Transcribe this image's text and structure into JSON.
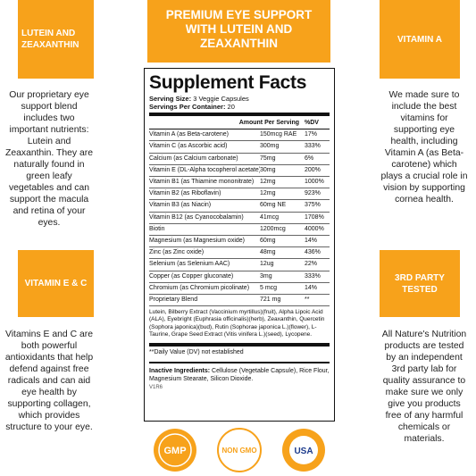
{
  "banner": "PREMIUM EYE SUPPORT WITH LUTEIN AND ZEAXANTHIN",
  "side_boxes": [
    {
      "heading": "LUTEIN AND ZEAXANTHIN",
      "text": "Our proprietary eye support blend includes two important nutrients: Lutein and Zeaxanthin. They are naturally found in green leafy vegetables and can support the macula and retina of your eyes."
    },
    {
      "heading": "VITAMIN A",
      "text": "We made sure to include the best vitamins for supporting eye health, including Vitamin A (as Beta-carotene) which plays a crucial role in vision by supporting cornea health."
    },
    {
      "heading": "VITAMIN E & C",
      "text": "Vitamins E and C are both powerful antioxidants that help defend against free radicals and can aid eye health by supporting collagen, which provides structure to your eye."
    },
    {
      "heading": "3RD PARTY TESTED",
      "text": "All Nature's Nutrition products are tested by an independent 3rd party lab for quality assurance to make sure we only give you products free of any harmful chemicals or materials."
    }
  ],
  "facts": {
    "title": "Supplement Facts",
    "serving_size_label": "Serving Size:",
    "serving_size": "3 Veggie Capsules",
    "servings_label": "Servings Per Container:",
    "servings": "20",
    "header": {
      "amount": "Amount Per Serving",
      "dv": "%DV"
    },
    "rows": [
      [
        "Vitamin A (as Beta-carotene)",
        "150mcg RAE",
        "17%"
      ],
      [
        "Vitamin C (as Ascorbic acid)",
        "300mg",
        "333%"
      ],
      [
        "Calcium (as Calcium carbonate)",
        "75mg",
        "6%"
      ],
      [
        "Vitamin E (DL-Alpha tocopherol acetate)",
        "30mg",
        "200%"
      ],
      [
        "Vitamin B1 (as Thiamine mononitrate)",
        "12mg",
        "1000%"
      ],
      [
        "Vitamin B2 (as Riboflavin)",
        "12mg",
        "923%"
      ],
      [
        "Vitamin B3 (as Niacin)",
        "60mg NE",
        "375%"
      ],
      [
        "Vitamin B12 (as Cyanocobalamin)",
        "41mcg",
        "1708%"
      ],
      [
        "Biotin",
        "1200mcg",
        "4000%"
      ],
      [
        "Magnesium (as Magnesium oxide)",
        "60mg",
        "14%"
      ],
      [
        "Zinc (as Zinc oxide)",
        "48mg",
        "436%"
      ],
      [
        "Selenium (as Selenium AAC)",
        "12ug",
        "22%"
      ],
      [
        "Copper (as Copper gluconate)",
        "3mg",
        "333%"
      ],
      [
        "Chromium (as Chromium picolinate)",
        "5 mcg",
        "14%"
      ],
      [
        "Proprietary Blend",
        "721 mg",
        "**"
      ]
    ],
    "blend_text": "Lutein, Bilberry Extract (Vaccinium myrtillus)(fruit), Alpha Lipoic Acid (ALA), Eyebright (Euphrasia officinalis)(herb), Zeaxanthin, Quercetin (Sophora japonica)(bud), Rutin (Sophorae japonica L.)(flower), L-Taurine, Grape Seed Extract (Vitis vinifera L.)(seed), Lycopene.",
    "footnote": "**Daily Value (DV) not established",
    "inactive_label": "Inactive Ingredients:",
    "inactive_text": "Cellulose (Vegetable Capsule), Rice Flour, Magnesium Stearate, Silicon Dioxide.",
    "code": "V1R6"
  },
  "badges": [
    "GMP",
    "NON GMO",
    "USA"
  ]
}
